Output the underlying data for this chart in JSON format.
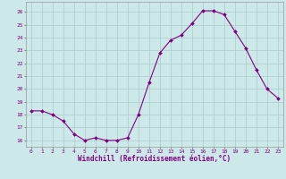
{
  "x": [
    0,
    1,
    2,
    3,
    4,
    5,
    6,
    7,
    8,
    9,
    10,
    11,
    12,
    13,
    14,
    15,
    16,
    17,
    18,
    19,
    20,
    21,
    22,
    23
  ],
  "y": [
    18.3,
    18.3,
    18.0,
    17.5,
    16.5,
    16.0,
    16.2,
    16.0,
    16.0,
    16.2,
    18.0,
    20.5,
    22.8,
    23.8,
    24.2,
    25.1,
    26.1,
    26.1,
    25.8,
    24.5,
    23.2,
    21.5,
    20.0,
    19.3
  ],
  "line_color": "#800080",
  "marker_color": "#800080",
  "bg_color": "#cce8e8",
  "grid_color": "#aacccc",
  "xlabel": "Windchill (Refroidissement éolien,°C)",
  "xlabel_color": "#800080",
  "tick_color": "#800080",
  "ylim": [
    15.5,
    26.8
  ],
  "yticks": [
    16,
    17,
    18,
    19,
    20,
    21,
    22,
    23,
    24,
    25,
    26
  ],
  "xticks": [
    0,
    1,
    2,
    3,
    4,
    5,
    6,
    7,
    8,
    9,
    10,
    11,
    12,
    13,
    14,
    15,
    16,
    17,
    18,
    19,
    20,
    21,
    22,
    23
  ]
}
